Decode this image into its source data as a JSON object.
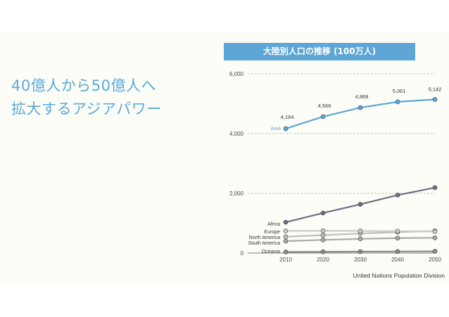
{
  "headline": {
    "line1": "40億人から50億人へ",
    "line2": "拡大するアジアパワー"
  },
  "source": "United Nations Population Division",
  "colors": {
    "accent": "#5ea6d6",
    "asia": "#5ea6d6",
    "africa": "#6b6f82",
    "europe": "#c9c9c9",
    "north_america": "#bdbdbd",
    "south_america": "#a9a9a9",
    "oceania": "#8a8a8a"
  },
  "chart_data": {
    "type": "line",
    "title": "大陸別人口の推移 (100万人)",
    "x": [
      2010,
      2020,
      2030,
      2040,
      2050
    ],
    "xlabel": "",
    "ylabel": "",
    "ylim": [
      0,
      6000
    ],
    "yticks": [
      0,
      2000,
      4000,
      6000
    ],
    "ytick_labels": [
      "0",
      "2,000",
      "4,000",
      "6,000"
    ],
    "grid": "horizontal dashed",
    "series": [
      {
        "name": "Asia",
        "color": "#5ea6d6",
        "values": [
          4164,
          4566,
          4868,
          5061,
          5142
        ],
        "data_labels": [
          "4,164",
          "4,566",
          "4,868",
          "5,061",
          "5,142"
        ]
      },
      {
        "name": "Africa",
        "color": "#6b6f82",
        "values": [
          1031,
          1340,
          1630,
          1940,
          2190
        ]
      },
      {
        "name": "Europe",
        "color": "#c9c9c9",
        "values": [
          740,
          745,
          740,
          730,
          720
        ]
      },
      {
        "name": "North America",
        "color": "#bdbdbd",
        "values": [
          545,
          600,
          655,
          700,
          740
        ]
      },
      {
        "name": "South America",
        "color": "#a9a9a9",
        "values": [
          400,
          440,
          475,
          500,
          510
        ]
      },
      {
        "name": "Oceania",
        "color": "#8a8a8a",
        "values": [
          37,
          42,
          47,
          52,
          57
        ]
      }
    ]
  }
}
